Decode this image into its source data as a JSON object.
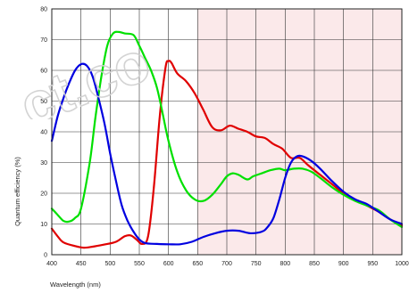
{
  "chart_data": {
    "type": "line",
    "title": "",
    "xlabel": "Wavelength (nm)",
    "ylabel": "Quantum efficiency (%)",
    "xlim": [
      400,
      1000
    ],
    "ylim": [
      0,
      80
    ],
    "x_ticks": [
      400,
      450,
      500,
      550,
      600,
      650,
      700,
      750,
      800,
      850,
      900,
      950,
      1000
    ],
    "y_ticks": [
      0,
      10,
      20,
      30,
      40,
      50,
      60,
      70,
      80
    ],
    "grid": true,
    "legend": "none",
    "shaded_region": {
      "x_start": 650,
      "x_end": 1000,
      "color": "#fbe9ea"
    },
    "series": [
      {
        "color": "#e00000",
        "points": [
          [
            400,
            8.5
          ],
          [
            410,
            6
          ],
          [
            420,
            4
          ],
          [
            440,
            2.8
          ],
          [
            455,
            2.3
          ],
          [
            470,
            2.6
          ],
          [
            490,
            3.3
          ],
          [
            510,
            4.2
          ],
          [
            525,
            6
          ],
          [
            535,
            6.3
          ],
          [
            545,
            5
          ],
          [
            555,
            3.5
          ],
          [
            565,
            6
          ],
          [
            575,
            22
          ],
          [
            585,
            45
          ],
          [
            595,
            61
          ],
          [
            600,
            63
          ],
          [
            605,
            62.5
          ],
          [
            615,
            59
          ],
          [
            630,
            56.5
          ],
          [
            645,
            52.5
          ],
          [
            660,
            47
          ],
          [
            675,
            41.5
          ],
          [
            690,
            40.5
          ],
          [
            705,
            42
          ],
          [
            720,
            41
          ],
          [
            735,
            40
          ],
          [
            750,
            38.5
          ],
          [
            765,
            38
          ],
          [
            780,
            36
          ],
          [
            795,
            34.5
          ],
          [
            810,
            31.5
          ],
          [
            825,
            31.5
          ],
          [
            840,
            29
          ],
          [
            860,
            26
          ],
          [
            880,
            23
          ],
          [
            900,
            20
          ],
          [
            920,
            18
          ],
          [
            940,
            16
          ],
          [
            960,
            14
          ],
          [
            980,
            11.5
          ],
          [
            1000,
            9.5
          ]
        ]
      },
      {
        "color": "#00e000",
        "points": [
          [
            400,
            15
          ],
          [
            410,
            13
          ],
          [
            420,
            11
          ],
          [
            430,
            10.8
          ],
          [
            440,
            12
          ],
          [
            450,
            15
          ],
          [
            465,
            30
          ],
          [
            475,
            45
          ],
          [
            485,
            58
          ],
          [
            495,
            68
          ],
          [
            505,
            72
          ],
          [
            515,
            72.5
          ],
          [
            525,
            72
          ],
          [
            540,
            71.5
          ],
          [
            550,
            68
          ],
          [
            560,
            64
          ],
          [
            570,
            60
          ],
          [
            580,
            54.5
          ],
          [
            590,
            46
          ],
          [
            600,
            37
          ],
          [
            615,
            27
          ],
          [
            630,
            21
          ],
          [
            645,
            18
          ],
          [
            660,
            17.5
          ],
          [
            675,
            19.5
          ],
          [
            690,
            23
          ],
          [
            700,
            25.5
          ],
          [
            710,
            26.5
          ],
          [
            720,
            26
          ],
          [
            735,
            24.5
          ],
          [
            745,
            25.5
          ],
          [
            760,
            26.5
          ],
          [
            775,
            27.5
          ],
          [
            790,
            28
          ],
          [
            800,
            27.5
          ],
          [
            815,
            28
          ],
          [
            830,
            28
          ],
          [
            845,
            27
          ],
          [
            860,
            25
          ],
          [
            880,
            22
          ],
          [
            900,
            19.5
          ],
          [
            920,
            17.5
          ],
          [
            940,
            16
          ],
          [
            960,
            14.5
          ],
          [
            980,
            11.5
          ],
          [
            1000,
            9
          ]
        ]
      },
      {
        "color": "#0000e0",
        "points": [
          [
            400,
            37
          ],
          [
            410,
            45
          ],
          [
            420,
            51
          ],
          [
            430,
            56
          ],
          [
            440,
            60
          ],
          [
            450,
            62
          ],
          [
            460,
            61.5
          ],
          [
            470,
            58
          ],
          [
            480,
            51
          ],
          [
            490,
            43
          ],
          [
            500,
            33
          ],
          [
            510,
            24
          ],
          [
            520,
            16
          ],
          [
            530,
            11
          ],
          [
            540,
            7.5
          ],
          [
            550,
            5
          ],
          [
            560,
            3.8
          ],
          [
            580,
            3.5
          ],
          [
            600,
            3.4
          ],
          [
            620,
            3.4
          ],
          [
            640,
            4.2
          ],
          [
            660,
            5.8
          ],
          [
            680,
            7
          ],
          [
            700,
            7.8
          ],
          [
            720,
            7.8
          ],
          [
            740,
            7
          ],
          [
            760,
            7.5
          ],
          [
            770,
            9
          ],
          [
            780,
            12
          ],
          [
            790,
            18
          ],
          [
            800,
            25
          ],
          [
            810,
            30
          ],
          [
            820,
            32
          ],
          [
            830,
            32
          ],
          [
            845,
            30.5
          ],
          [
            860,
            28
          ],
          [
            880,
            24
          ],
          [
            900,
            20.5
          ],
          [
            920,
            18
          ],
          [
            940,
            16.5
          ],
          [
            960,
            14
          ],
          [
            980,
            11.5
          ],
          [
            1000,
            10
          ]
        ]
      }
    ]
  },
  "watermark": {
    "text": "ct.co"
  }
}
